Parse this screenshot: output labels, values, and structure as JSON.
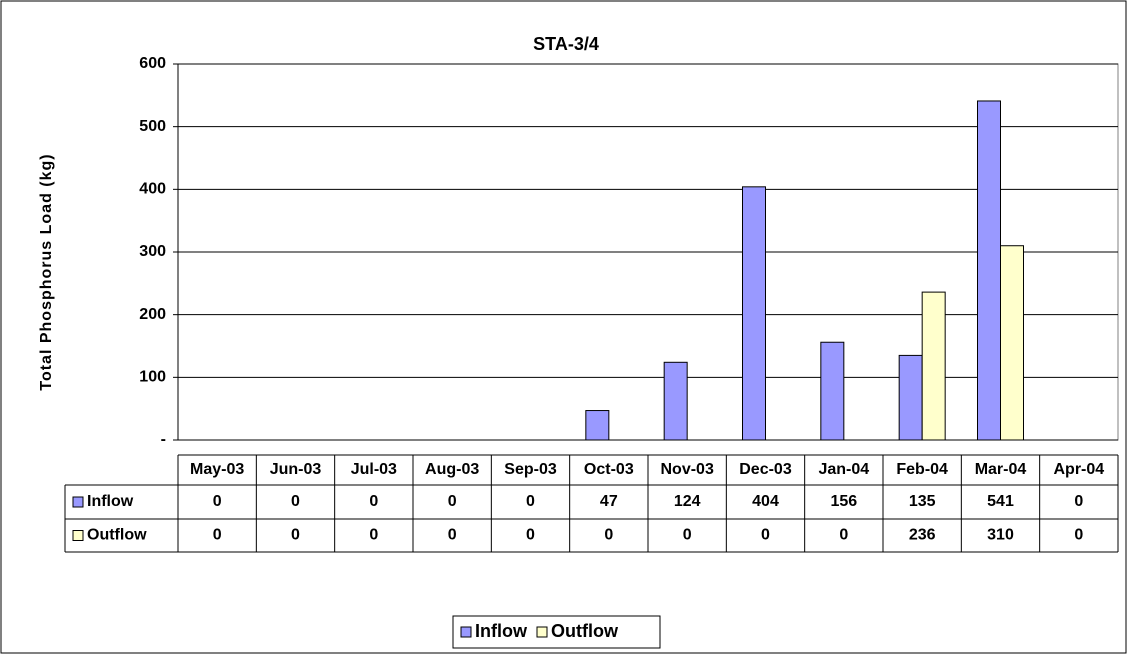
{
  "chart_data": {
    "type": "bar",
    "title": "STA-3/4",
    "y_label": "Total Phosphorus Load (kg)",
    "categories": [
      "May-03",
      "Jun-03",
      "Jul-03",
      "Aug-03",
      "Sep-03",
      "Oct-03",
      "Nov-03",
      "Dec-03",
      "Jan-04",
      "Feb-04",
      "Mar-04",
      "Apr-04"
    ],
    "series": [
      {
        "name": "Inflow",
        "color": "#9999ff",
        "values": [
          0,
          0,
          0,
          0,
          0,
          47,
          124,
          404,
          156,
          135,
          541,
          0
        ]
      },
      {
        "name": "Outflow",
        "color": "#ffffcc",
        "values": [
          0,
          0,
          0,
          0,
          0,
          0,
          0,
          0,
          0,
          236,
          310,
          0
        ]
      }
    ],
    "ylim": [
      0,
      600
    ],
    "yticks": [
      {
        "value": 0,
        "label": "-"
      },
      100,
      200,
      300,
      400,
      500,
      600
    ],
    "grid": true,
    "legend": "bottom"
  }
}
